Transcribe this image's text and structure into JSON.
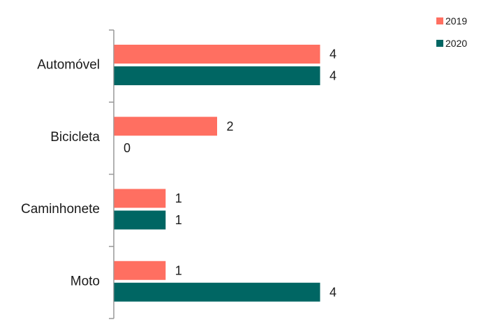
{
  "chart_data": {
    "type": "bar",
    "orientation": "horizontal",
    "categories": [
      "Automóvel",
      "Bicicleta",
      "Caminhonete",
      "Moto"
    ],
    "series": [
      {
        "name": "2019",
        "values": [
          4,
          2,
          1,
          1
        ],
        "color": "#ff6f61"
      },
      {
        "name": "2020",
        "values": [
          4,
          0,
          1,
          4
        ],
        "color": "#006663"
      }
    ],
    "xlim": [
      0,
      8
    ],
    "grid": false,
    "legend": "top-right",
    "axis_color": "#999999"
  }
}
